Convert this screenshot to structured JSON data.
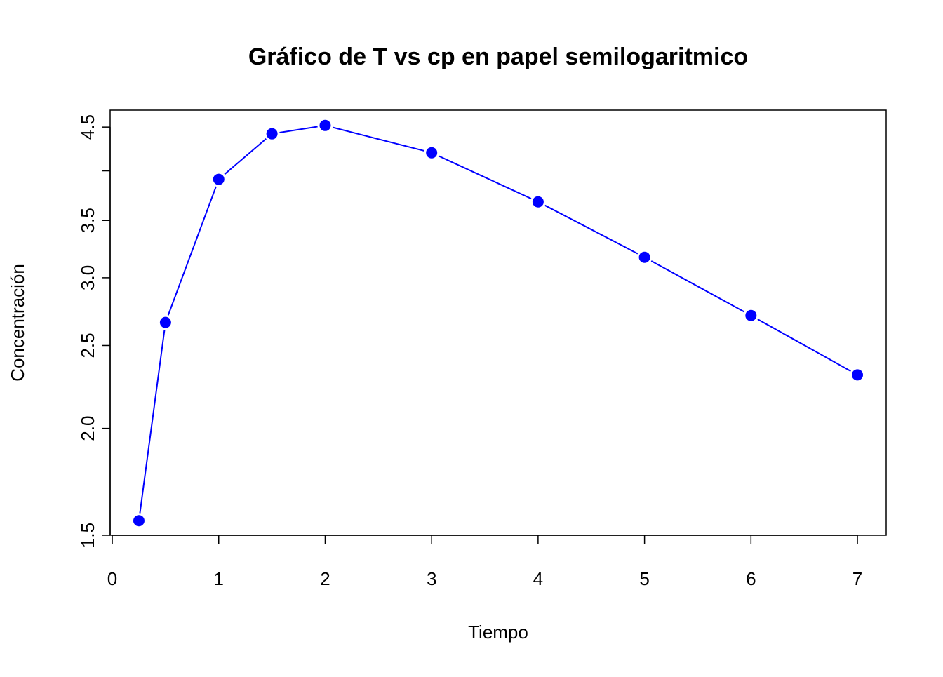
{
  "chart_data": {
    "type": "line",
    "title": "Gráfico de T vs cp en papel semilogaritmico",
    "x_label": "Tiempo",
    "y_label": "Concentración",
    "x": [
      0.25,
      0.5,
      1,
      1.5,
      2,
      3,
      4,
      5,
      6,
      7
    ],
    "series": [
      {
        "color": "#0000ff",
        "values": [
          1.56,
          2.66,
          3.91,
          4.42,
          4.52,
          4.2,
          3.68,
          3.17,
          2.71,
          2.31
        ]
      }
    ],
    "xlim": [
      -0.02,
      7.27
    ],
    "ylim": [
      1.5,
      4.71
    ],
    "y_log": true,
    "xticks": [
      0,
      1,
      2,
      3,
      4,
      5,
      6,
      7
    ],
    "yticks": [
      1.5,
      {
        "value": 2,
        "label": "2.0"
      },
      2.5,
      {
        "value": 3,
        "label": "3.0"
      },
      3.5,
      {
        "value": 4,
        "label": null
      },
      4.5
    ]
  }
}
